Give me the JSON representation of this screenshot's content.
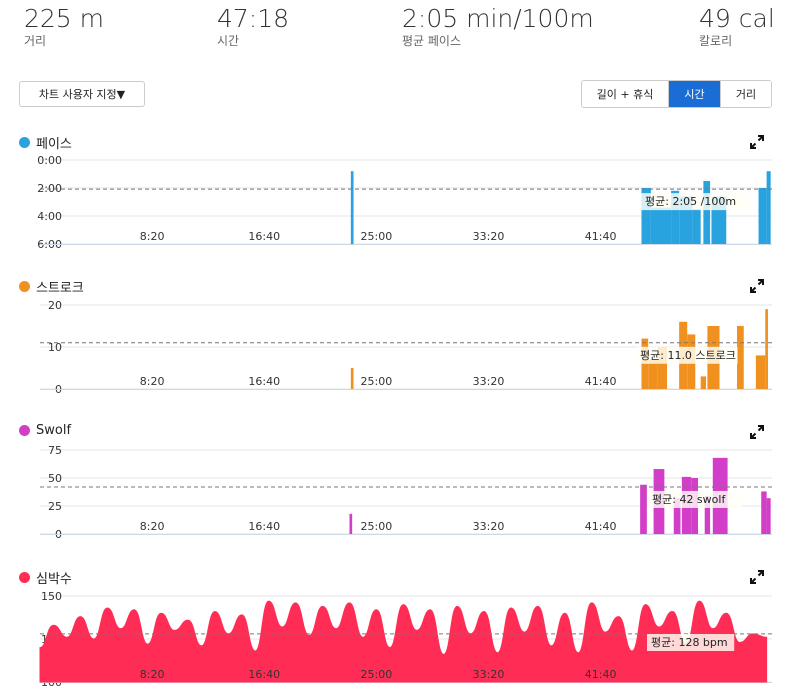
{
  "summary": [
    {
      "value": "225 m",
      "label": "거리"
    },
    {
      "value": "47:18",
      "label": "시간"
    },
    {
      "value": "2:05 min/100m",
      "label": "평균 페이스"
    },
    {
      "value": "49 cal",
      "label": "칼로리"
    }
  ],
  "controls": {
    "customize_label": "차트 사용자 지정▼",
    "toggle": [
      {
        "label": "길이 + 휴식",
        "active": false
      },
      {
        "label": "시간",
        "active": true
      },
      {
        "label": "거리",
        "active": false
      }
    ]
  },
  "icons": {
    "expand": "expand-icon"
  },
  "x_ticks": [
    "8:20",
    "16:40",
    "25:00",
    "33:20",
    "41:40"
  ],
  "chart_data": [
    {
      "id": "pace",
      "type": "bar",
      "title": "페이스",
      "color": "#29a3e0",
      "y_ticks": [
        "0:00",
        "2:00",
        "4:00",
        "6:00"
      ],
      "ylim": [
        6,
        0
      ],
      "avg_value": 2.08,
      "avg_label": "평균: 2:05 /100m",
      "x_unit": "minutes",
      "bars": [
        {
          "start": 23.1,
          "end": 23.3,
          "value": 0.8
        },
        {
          "start": 44.7,
          "end": 45.4,
          "value": 2.0
        },
        {
          "start": 45.4,
          "end": 46.9,
          "value": 3.4
        },
        {
          "start": 46.9,
          "end": 47.5,
          "value": 2.2
        },
        {
          "start": 47.5,
          "end": 48.5,
          "value": 2.6
        },
        {
          "start": 48.5,
          "end": 49.1,
          "value": 3.5
        },
        {
          "start": 49.3,
          "end": 49.8,
          "value": 1.5
        },
        {
          "start": 49.9,
          "end": 51.0,
          "value": 2.6
        },
        {
          "start": 53.4,
          "end": 54.0,
          "value": 2.0
        },
        {
          "start": 54.0,
          "end": 54.3,
          "value": 0.8
        }
      ]
    },
    {
      "id": "stroke",
      "type": "bar",
      "title": "스트로크",
      "color": "#f0901e",
      "y_ticks": [
        "20",
        "10",
        "0"
      ],
      "ylim": [
        0,
        20
      ],
      "avg_value": 11.0,
      "avg_label": "평균: 11.0 스트로크",
      "x_unit": "minutes",
      "bars": [
        {
          "start": 23.1,
          "end": 23.3,
          "value": 5
        },
        {
          "start": 44.7,
          "end": 45.2,
          "value": 12
        },
        {
          "start": 45.2,
          "end": 45.9,
          "value": 7
        },
        {
          "start": 45.9,
          "end": 46.6,
          "value": 10
        },
        {
          "start": 47.5,
          "end": 48.1,
          "value": 16
        },
        {
          "start": 48.1,
          "end": 48.7,
          "value": 13
        },
        {
          "start": 49.1,
          "end": 49.5,
          "value": 3
        },
        {
          "start": 49.6,
          "end": 50.5,
          "value": 15
        },
        {
          "start": 51.8,
          "end": 52.3,
          "value": 15
        },
        {
          "start": 53.2,
          "end": 53.9,
          "value": 8
        },
        {
          "start": 53.9,
          "end": 54.1,
          "value": 19
        }
      ]
    },
    {
      "id": "swolf",
      "type": "bar",
      "title": "Swolf",
      "color": "#d33ec8",
      "y_ticks": [
        "75",
        "50",
        "25",
        "0"
      ],
      "ylim": [
        0,
        75
      ],
      "avg_value": 42,
      "avg_label": "평균: 42 swolf",
      "x_unit": "minutes",
      "bars": [
        {
          "start": 23.0,
          "end": 23.2,
          "value": 18
        },
        {
          "start": 44.6,
          "end": 45.1,
          "value": 44
        },
        {
          "start": 45.6,
          "end": 46.4,
          "value": 58
        },
        {
          "start": 47.1,
          "end": 47.6,
          "value": 32
        },
        {
          "start": 47.7,
          "end": 48.4,
          "value": 51
        },
        {
          "start": 48.4,
          "end": 48.9,
          "value": 50
        },
        {
          "start": 49.4,
          "end": 49.8,
          "value": 34
        },
        {
          "start": 50.0,
          "end": 51.1,
          "value": 68
        },
        {
          "start": 53.6,
          "end": 54.0,
          "value": 38
        },
        {
          "start": 54.0,
          "end": 54.3,
          "value": 32
        }
      ]
    },
    {
      "id": "hr",
      "type": "area",
      "title": "심박수",
      "color": "#ff2d55",
      "y_ticks": [
        "150",
        "125",
        "100"
      ],
      "ylim": [
        100,
        150
      ],
      "avg_value": 128,
      "avg_label": "평균: 128 bpm",
      "x_unit": "minutes",
      "x": [
        0,
        1,
        2,
        3,
        4,
        5,
        6,
        7,
        8,
        9,
        10,
        11,
        12,
        13,
        14,
        15,
        16,
        17,
        18,
        19,
        20,
        21,
        22,
        23,
        24,
        25,
        26,
        27,
        28,
        29,
        30,
        31,
        32,
        33,
        34,
        35,
        36,
        37,
        38,
        39,
        40,
        41,
        42,
        43,
        44,
        45,
        46,
        47,
        48,
        49,
        50,
        51,
        52,
        53,
        54
      ],
      "y": [
        120,
        133,
        126,
        138,
        125,
        143,
        131,
        142,
        122,
        140,
        130,
        136,
        121,
        141,
        128,
        139,
        118,
        147,
        132,
        146,
        127,
        144,
        131,
        146,
        126,
        142,
        120,
        145,
        130,
        142,
        116,
        144,
        128,
        141,
        117,
        143,
        129,
        144,
        121,
        140,
        117,
        146,
        129,
        138,
        118,
        145,
        132,
        141,
        122,
        147,
        131,
        140,
        123,
        128,
        126
      ]
    }
  ]
}
